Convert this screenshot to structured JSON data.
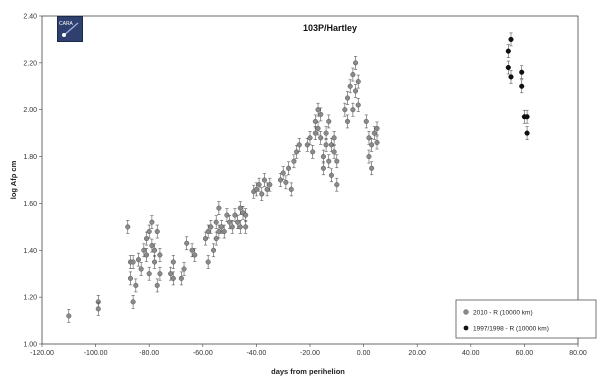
{
  "chart_data": {
    "type": "scatter",
    "title": "103P/Hartley",
    "xlabel": "days from perihelion",
    "ylabel": "log Afρ cm",
    "xlim": [
      -120,
      80
    ],
    "ylim": [
      1.0,
      2.4
    ],
    "xticks": [
      "-120.00",
      "-100.00",
      "-80.00",
      "-60.00",
      "-40.00",
      "-20.00",
      "0.00",
      "20.00",
      "40.00",
      "60.00",
      "80.00"
    ],
    "yticks": [
      "1.00",
      "1.20",
      "1.40",
      "1.60",
      "1.80",
      "2.00",
      "2.20",
      "2.40"
    ],
    "grid": false,
    "legend_position": "bottom-right",
    "series": [
      {
        "name": "2010 - R (10000 km)",
        "color": "#8a8a8a",
        "marker": "circle",
        "error_bars": true,
        "points": [
          [
            -110,
            1.12
          ],
          [
            -99,
            1.18
          ],
          [
            -99,
            1.15
          ],
          [
            -88,
            1.5
          ],
          [
            -87,
            1.35
          ],
          [
            -87,
            1.28
          ],
          [
            -86,
            1.18
          ],
          [
            -86,
            1.35
          ],
          [
            -85,
            1.25
          ],
          [
            -84,
            1.36
          ],
          [
            -83,
            1.32
          ],
          [
            -82,
            1.4
          ],
          [
            -81,
            1.45
          ],
          [
            -81,
            1.38
          ],
          [
            -80,
            1.3
          ],
          [
            -80,
            1.48
          ],
          [
            -79,
            1.52
          ],
          [
            -79,
            1.42
          ],
          [
            -78,
            1.35
          ],
          [
            -78,
            1.4
          ],
          [
            -77,
            1.25
          ],
          [
            -77,
            1.48
          ],
          [
            -76,
            1.3
          ],
          [
            -76,
            1.38
          ],
          [
            -72,
            1.3
          ],
          [
            -71,
            1.35
          ],
          [
            -71,
            1.28
          ],
          [
            -68,
            1.28
          ],
          [
            -67,
            1.32
          ],
          [
            -66,
            1.43
          ],
          [
            -64,
            1.4
          ],
          [
            -63,
            1.38
          ],
          [
            -59,
            1.45
          ],
          [
            -58,
            1.48
          ],
          [
            -58,
            1.35
          ],
          [
            -57,
            1.5
          ],
          [
            -56,
            1.4
          ],
          [
            -55,
            1.45
          ],
          [
            -55,
            1.52
          ],
          [
            -54,
            1.48
          ],
          [
            -54,
            1.58
          ],
          [
            -53,
            1.5
          ],
          [
            -52,
            1.48
          ],
          [
            -51,
            1.55
          ],
          [
            -50,
            1.52
          ],
          [
            -49,
            1.5
          ],
          [
            -48,
            1.55
          ],
          [
            -47,
            1.52
          ],
          [
            -46,
            1.58
          ],
          [
            -46,
            1.5
          ],
          [
            -45,
            1.56
          ],
          [
            -44,
            1.55
          ],
          [
            -44,
            1.5
          ],
          [
            -41,
            1.65
          ],
          [
            -40,
            1.66
          ],
          [
            -39,
            1.68
          ],
          [
            -38,
            1.64
          ],
          [
            -37,
            1.7
          ],
          [
            -36,
            1.66
          ],
          [
            -35,
            1.68
          ],
          [
            -31,
            1.7
          ],
          [
            -30,
            1.73
          ],
          [
            -29,
            1.69
          ],
          [
            -28,
            1.75
          ],
          [
            -27,
            1.66
          ],
          [
            -26,
            1.78
          ],
          [
            -25,
            1.82
          ],
          [
            -24,
            1.85
          ],
          [
            -21,
            1.85
          ],
          [
            -20,
            1.88
          ],
          [
            -19,
            1.82
          ],
          [
            -18,
            1.9
          ],
          [
            -18,
            1.95
          ],
          [
            -17,
            2.0
          ],
          [
            -17,
            1.92
          ],
          [
            -16,
            1.88
          ],
          [
            -16,
            1.98
          ],
          [
            -15,
            1.8
          ],
          [
            -15,
            1.75
          ],
          [
            -14,
            1.85
          ],
          [
            -14,
            1.9
          ],
          [
            -13,
            1.78
          ],
          [
            -13,
            1.95
          ],
          [
            -12,
            1.72
          ],
          [
            -12,
            1.85
          ],
          [
            -11,
            1.82
          ],
          [
            -11,
            1.88
          ],
          [
            -10,
            1.68
          ],
          [
            -10,
            1.78
          ],
          [
            -7,
            2.0
          ],
          [
            -6,
            1.95
          ],
          [
            -6,
            2.05
          ],
          [
            -5,
            2.1
          ],
          [
            -4,
            2.15
          ],
          [
            -4,
            2.0
          ],
          [
            -3,
            2.2
          ],
          [
            -3,
            2.08
          ],
          [
            -2,
            2.02
          ],
          [
            -2,
            2.12
          ],
          [
            1,
            1.95
          ],
          [
            2,
            1.88
          ],
          [
            2,
            1.8
          ],
          [
            3,
            1.75
          ],
          [
            3,
            1.85
          ],
          [
            4,
            1.9
          ],
          [
            5,
            1.92
          ],
          [
            5,
            1.86
          ]
        ]
      },
      {
        "name": "1997/1998 - R (10000 km)",
        "color": "#111111",
        "marker": "circle",
        "error_bars": true,
        "points": [
          [
            54,
            2.25
          ],
          [
            54,
            2.18
          ],
          [
            55,
            2.3
          ],
          [
            55,
            2.14
          ],
          [
            59,
            2.16
          ],
          [
            59,
            2.1
          ],
          [
            60,
            1.97
          ],
          [
            61,
            1.97
          ],
          [
            61,
            1.9
          ]
        ]
      }
    ]
  }
}
